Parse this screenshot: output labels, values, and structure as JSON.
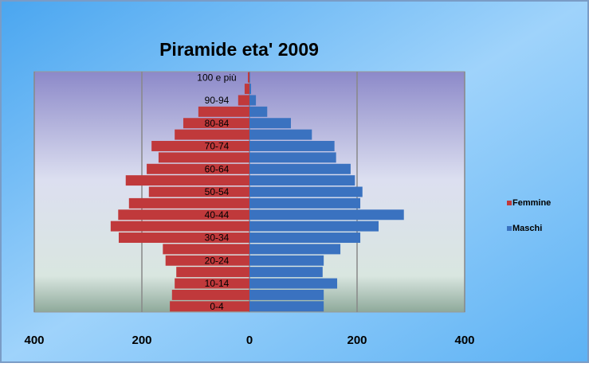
{
  "chart_data": {
    "type": "bar",
    "orientation": "horizontal",
    "title": "Piramide eta' 2009",
    "categories": [
      "0-4",
      null,
      "10-14",
      null,
      "20-24",
      null,
      "30-34",
      null,
      "40-44",
      null,
      "50-54",
      null,
      "60-64",
      null,
      "70-74",
      null,
      "80-84",
      null,
      "90-94",
      null,
      "100 e più"
    ],
    "series": [
      {
        "name": "Femmine",
        "color": "#c0393b",
        "values": [
          -148,
          -144,
          -139,
          -136,
          -156,
          -161,
          -243,
          -258,
          -244,
          -224,
          -187,
          -230,
          -191,
          -169,
          -182,
          -139,
          -123,
          -95,
          -21,
          -9,
          -3
        ]
      },
      {
        "name": "Maschi",
        "color": "#3a72c0",
        "values": [
          138,
          138,
          163,
          136,
          138,
          169,
          206,
          240,
          287,
          206,
          210,
          196,
          188,
          161,
          158,
          116,
          77,
          33,
          12,
          3,
          1
        ]
      }
    ],
    "xlim": [
      -400,
      400
    ],
    "xticks": [
      {
        "value": -400,
        "label": "400"
      },
      {
        "value": -200,
        "label": "200"
      },
      0,
      200,
      400
    ],
    "grid": true,
    "legend": "right"
  }
}
